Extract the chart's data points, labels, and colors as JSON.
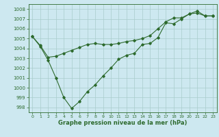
{
  "line_a_x": [
    0,
    1,
    2,
    3,
    4,
    5,
    6,
    7,
    8,
    9,
    10,
    11,
    12,
    13,
    14,
    15,
    16,
    17,
    18,
    19,
    20,
    21,
    22,
    23
  ],
  "line_a_y": [
    1005.2,
    1004.3,
    1003.1,
    1003.2,
    1003.5,
    1003.8,
    1004.1,
    1004.4,
    1004.5,
    1004.4,
    1004.4,
    1004.5,
    1004.7,
    1004.8,
    1005.0,
    1005.3,
    1006.0,
    1006.7,
    1007.1,
    1007.1,
    1007.5,
    1007.6,
    1007.3,
    1007.3
  ],
  "line_b_x": [
    0,
    1,
    2,
    3,
    4,
    5,
    6,
    7,
    8,
    9,
    10,
    11,
    12,
    13,
    14,
    15,
    16,
    17,
    18,
    19,
    20,
    21,
    22,
    23
  ],
  "line_b_y": [
    1005.2,
    1004.2,
    1002.8,
    1001.0,
    999.0,
    997.9,
    998.6,
    999.6,
    1000.3,
    1001.2,
    1002.0,
    1002.9,
    1003.3,
    1003.5,
    1004.4,
    1004.5,
    1005.1,
    1006.6,
    1006.5,
    1007.0,
    1007.5,
    1007.8,
    1007.3,
    1007.3
  ],
  "bg_color": "#cde8f0",
  "line_color": "#2d6a2d",
  "grid_color": "#a8cccc",
  "xlabel": "Graphe pression niveau de la mer (hPa)",
  "ylim": [
    997.5,
    1008.5
  ],
  "xlim": [
    -0.5,
    23.5
  ],
  "yticks": [
    998,
    999,
    1000,
    1001,
    1002,
    1003,
    1004,
    1005,
    1006,
    1007,
    1008
  ],
  "xticks": [
    0,
    1,
    2,
    3,
    4,
    5,
    6,
    7,
    8,
    9,
    10,
    11,
    12,
    13,
    14,
    15,
    16,
    17,
    18,
    19,
    20,
    21,
    22,
    23
  ]
}
